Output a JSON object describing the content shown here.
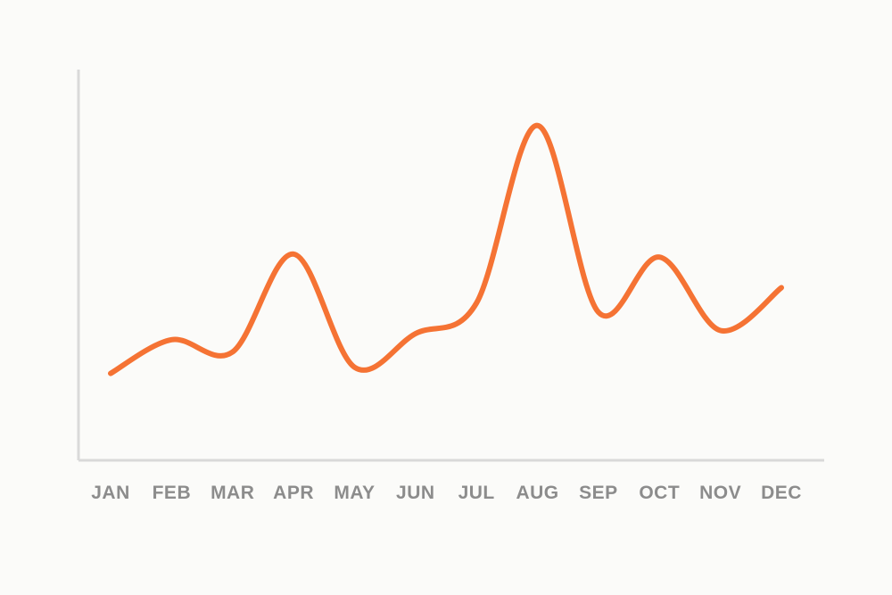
{
  "chart_data": {
    "type": "line",
    "title": "",
    "xlabel": "",
    "ylabel": "",
    "categories": [
      "JAN",
      "FEB",
      "MAR",
      "APR",
      "MAY",
      "JUN",
      "JUL",
      "AUG",
      "SEP",
      "OCT",
      "NOV",
      "DEC"
    ],
    "ylim": [
      0,
      100
    ],
    "grid": false,
    "legend": "none",
    "series": [
      {
        "color": "#f57334",
        "values": [
          8,
          19,
          15,
          47,
          10,
          21,
          31,
          89,
          28,
          46,
          22,
          36
        ]
      }
    ]
  }
}
